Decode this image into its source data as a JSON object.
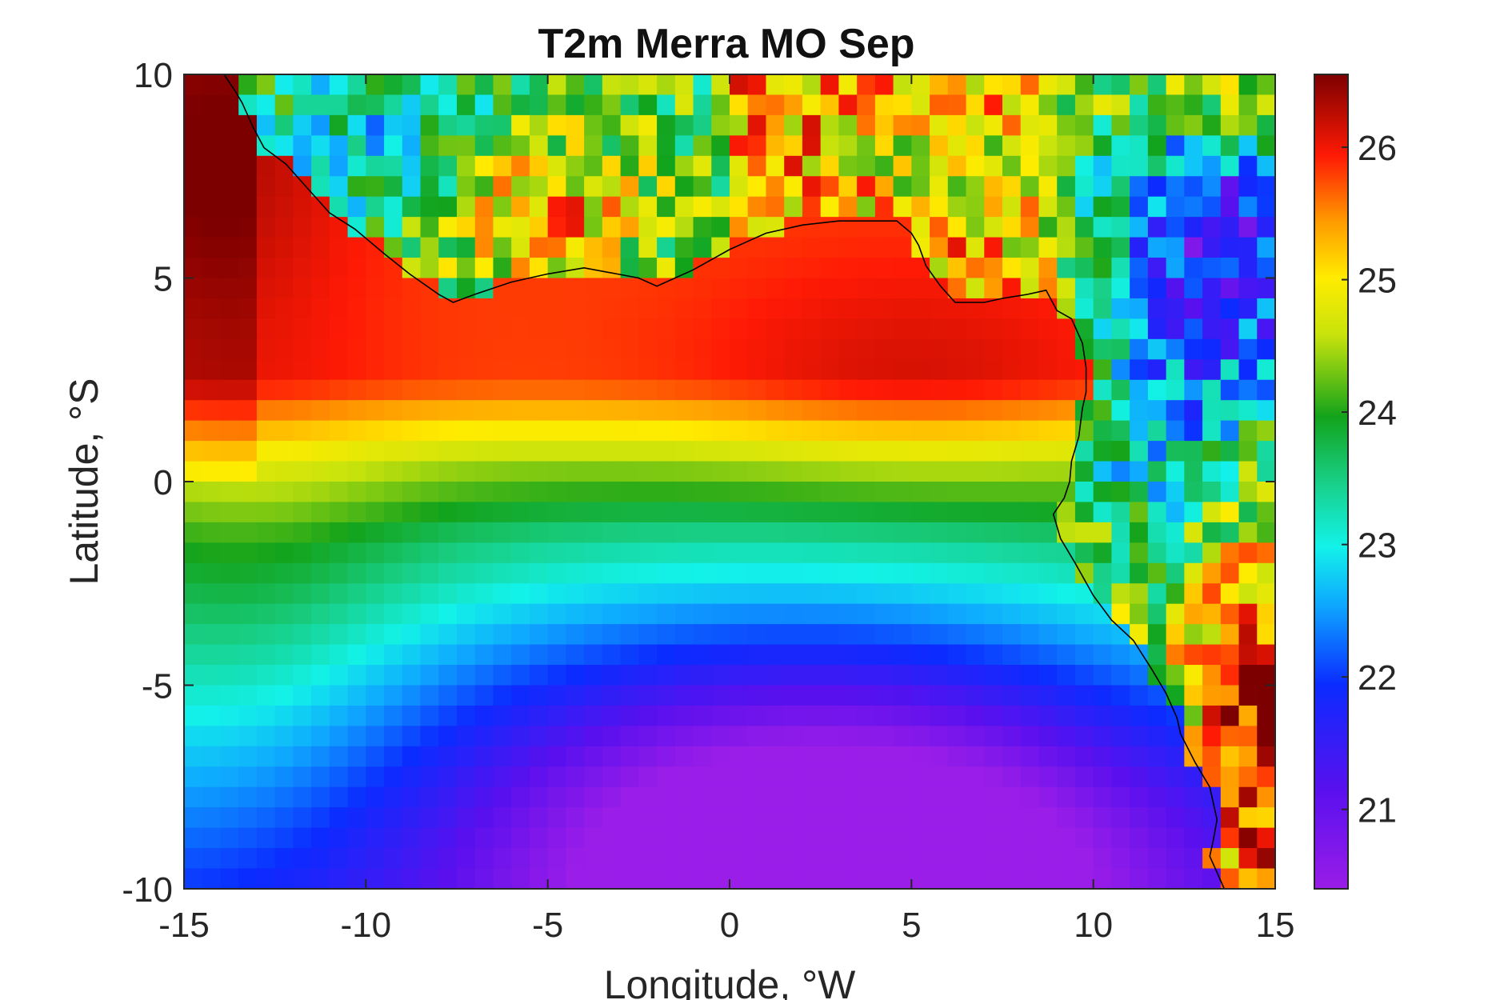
{
  "chart_data": {
    "type": "heatmap",
    "title": "T2m Merra MO Sep",
    "xlabel": "Longitude, °W",
    "ylabel": "Latitude, °S",
    "xlim": [
      -15,
      15
    ],
    "ylim": [
      -10,
      10
    ],
    "x_ticks": [
      -15,
      -10,
      -5,
      0,
      5,
      10,
      15
    ],
    "y_ticks": [
      10,
      5,
      0,
      -5,
      -10
    ],
    "colorbar": {
      "range": [
        20.4,
        26.55
      ],
      "ticks": [
        21,
        22,
        23,
        24,
        25,
        26
      ],
      "colormap": "jet-like (purple → blue → cyan → green → yellow → red → dark red)"
    },
    "grid": false,
    "field_summary": {
      "ocean_north_of_equator_near_coast": 25.8,
      "northwest_corner": 26.4,
      "equator_band": 24.7,
      "southern_cold_tongue_min": 20.8,
      "southwest_ocean": 23.6,
      "land_east_congo_basin": 22.2,
      "land_northwest": 23.4
    },
    "coastline_shown": true
  }
}
